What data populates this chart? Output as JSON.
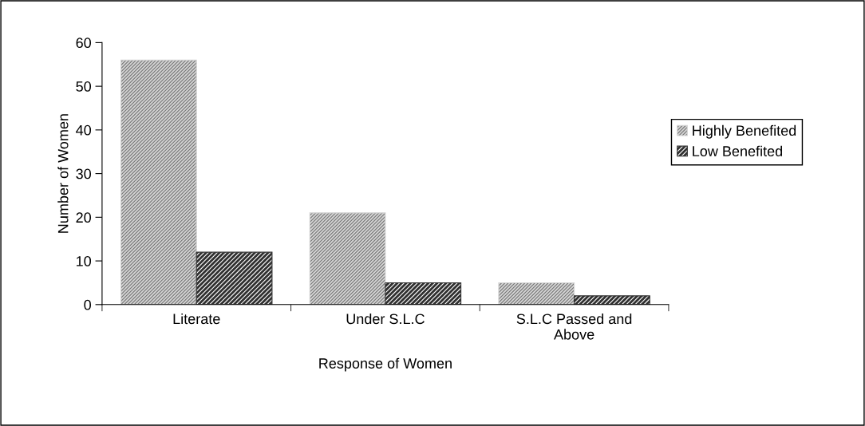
{
  "chart_data": {
    "type": "bar",
    "xlabel": "Response of Women",
    "ylabel": "Number of Women",
    "categories": [
      "Literate",
      "Under S.L.C",
      "S.L.C Passed and\nAbove"
    ],
    "series": [
      {
        "name": "Highly Benefited",
        "color": "#d4d4d4",
        "values": [
          56,
          21,
          5
        ]
      },
      {
        "name": "Low Benefited",
        "color": "#303030",
        "values": [
          12,
          5,
          2
        ]
      }
    ],
    "ylim": [
      0,
      60
    ],
    "yticks": [
      0,
      10,
      20,
      30,
      40,
      50,
      60
    ],
    "grid": false,
    "legend": "right"
  }
}
